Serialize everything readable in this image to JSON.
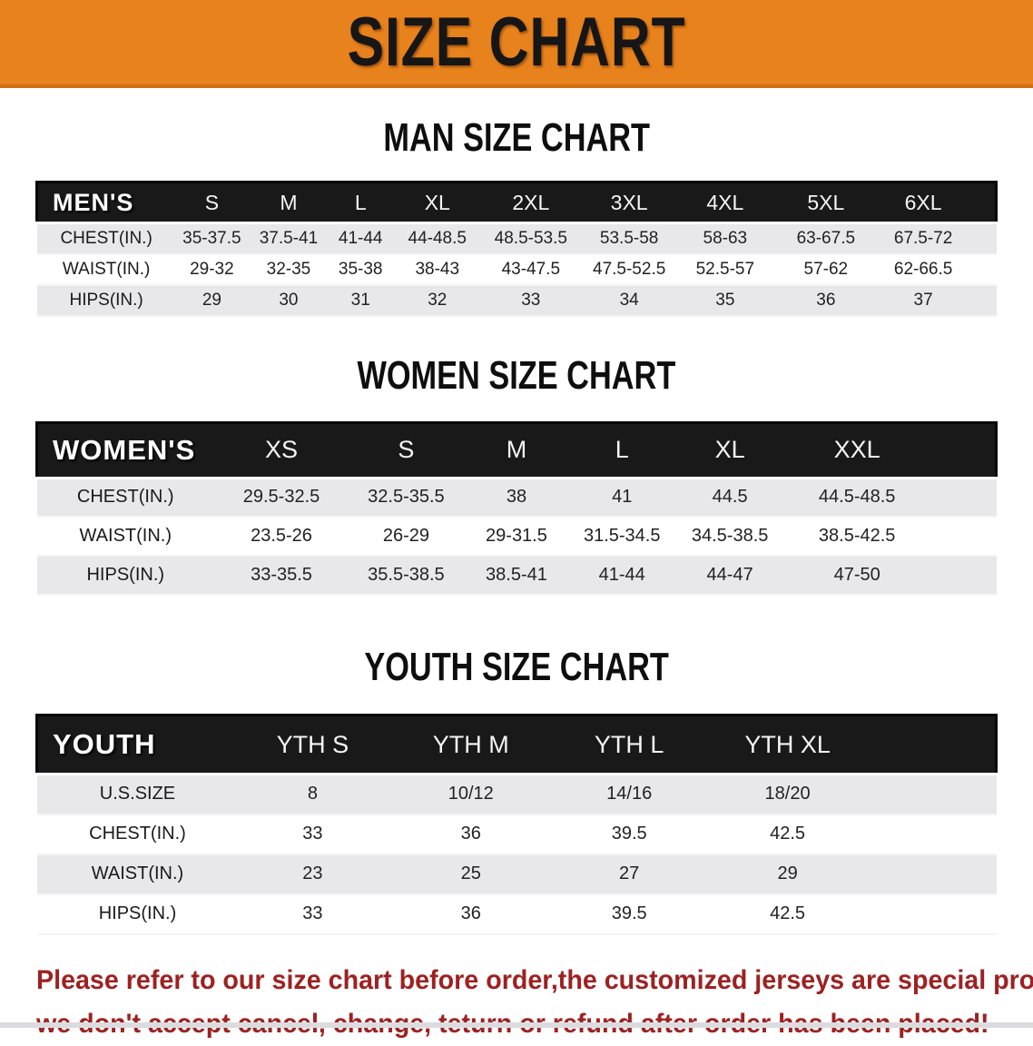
{
  "banner": {
    "title": "SIZE CHART",
    "bg_color": "#E8821C",
    "text_color": "#161616"
  },
  "colors": {
    "table_header_bg": "#191919",
    "shaded_row_bg": "#E8E8EA",
    "disclaimer_red": "#9E2121"
  },
  "sections": {
    "men": {
      "heading": "MAN SIZE CHART",
      "header_label": "MEN'S",
      "columns": [
        "S",
        "M",
        "L",
        "XL",
        "2XL",
        "3XL",
        "4XL",
        "5XL",
        "6XL"
      ],
      "rows": [
        {
          "label": "CHEST(IN.)",
          "values": [
            "35-37.5",
            "37.5-41",
            "41-44",
            "44-48.5",
            "48.5-53.5",
            "53.5-58",
            "58-63",
            "63-67.5",
            "67.5-72"
          ]
        },
        {
          "label": "WAIST(IN.)",
          "values": [
            "29-32",
            "32-35",
            "35-38",
            "38-43",
            "43-47.5",
            "47.5-52.5",
            "52.5-57",
            "57-62",
            "62-66.5"
          ]
        },
        {
          "label": "HIPS(IN.)",
          "values": [
            "29",
            "30",
            "31",
            "32",
            "33",
            "34",
            "35",
            "36",
            "37"
          ]
        }
      ]
    },
    "women": {
      "heading": "WOMEN SIZE CHART",
      "header_label": "WOMEN'S",
      "columns": [
        "XS",
        "S",
        "M",
        "L",
        "XL",
        "XXL"
      ],
      "rows": [
        {
          "label": "CHEST(IN.)",
          "values": [
            "29.5-32.5",
            "32.5-35.5",
            "38",
            "41",
            "44.5",
            "44.5-48.5"
          ]
        },
        {
          "label": "WAIST(IN.)",
          "values": [
            "23.5-26",
            "26-29",
            "29-31.5",
            "31.5-34.5",
            "34.5-38.5",
            "38.5-42.5"
          ]
        },
        {
          "label": "HIPS(IN.)",
          "values": [
            "33-35.5",
            "35.5-38.5",
            "38.5-41",
            "41-44",
            "44-47",
            "47-50"
          ]
        }
      ]
    },
    "youth": {
      "heading": "YOUTH SIZE CHART",
      "header_label": "YOUTH",
      "columns": [
        "YTH S",
        "YTH M",
        "YTH L",
        "YTH XL"
      ],
      "rows": [
        {
          "label": "U.S.SIZE",
          "values": [
            "8",
            "10/12",
            "14/16",
            "18/20"
          ]
        },
        {
          "label": "CHEST(IN.)",
          "values": [
            "33",
            "36",
            "39.5",
            "42.5"
          ]
        },
        {
          "label": "WAIST(IN.)",
          "values": [
            "23",
            "25",
            "27",
            "29"
          ]
        },
        {
          "label": "HIPS(IN.)",
          "values": [
            "33",
            "36",
            "39.5",
            "42.5"
          ]
        }
      ]
    }
  },
  "disclaimer": {
    "line1": "Please refer to our size chart before order,the customized jerseys are special products,",
    "line2": "we don't accept cancel, change, teturn or refund after order has been placed!"
  }
}
